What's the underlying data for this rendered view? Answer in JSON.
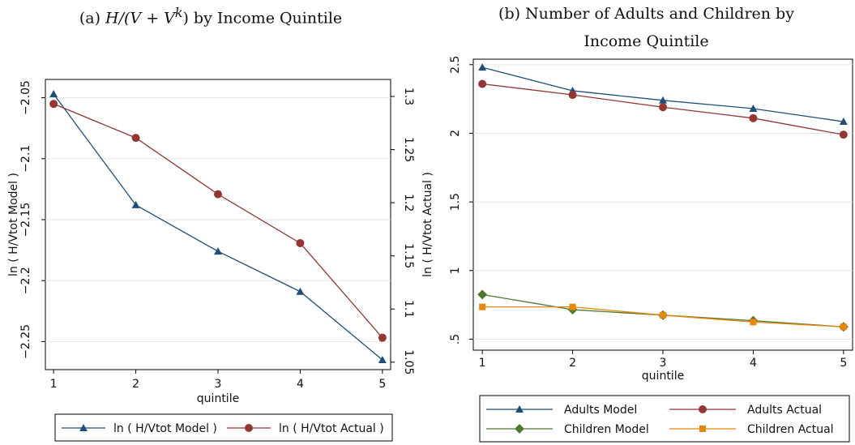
{
  "chart_data": [
    {
      "type": "line",
      "title_prefix": "(a) ",
      "title_math": "H/(V + V",
      "title_sup": "k",
      "title_suffix": ") by Income Quintile",
      "x": [
        1,
        2,
        3,
        4,
        5
      ],
      "xlabel": "quintile",
      "xlim": [
        0.9,
        5.1
      ],
      "xticks": [
        1,
        2,
        3,
        4,
        5
      ],
      "grid": true,
      "legend_position": "bottom",
      "series": [
        {
          "name": "ln ( H/Vtot Model )",
          "axis": "left",
          "color": "#1f4e79",
          "marker": "triangle",
          "values": [
            -2.047,
            -2.138,
            -2.176,
            -2.209,
            -2.265
          ]
        },
        {
          "name": "ln ( H/Vtot Actual )",
          "axis": "right",
          "color": "#943634",
          "marker": "circle",
          "values": [
            1.293,
            1.261,
            1.208,
            1.162,
            1.073
          ]
        }
      ],
      "y_left": {
        "label": "ln ( H/Vtot Model )",
        "ylim": [
          -2.273,
          -2.035
        ],
        "ticks": [
          -2.25,
          -2.2,
          -2.15,
          -2.1,
          -2.05
        ],
        "tick_labels": [
          "−2.25",
          "−2.2",
          "−2.15",
          "−2.1",
          "−2.05"
        ]
      },
      "y_right": {
        "label": "ln ( H/Vtot Actual )",
        "ylim": [
          1.043,
          1.316
        ],
        "ticks": [
          1.05,
          1.1,
          1.15,
          1.2,
          1.25,
          1.3
        ],
        "tick_labels": [
          "1.05",
          "1.1",
          "1.15",
          "1.2",
          "1.25",
          "1.3"
        ]
      }
    },
    {
      "type": "line",
      "title_line1": "(b) Number of Adults and Children by",
      "title_line2": "Income Quintile",
      "x": [
        1,
        2,
        3,
        4,
        5
      ],
      "xlabel": "quintile",
      "xlim": [
        0.9,
        5.1
      ],
      "xticks": [
        1,
        2,
        3,
        4,
        5
      ],
      "grid": true,
      "legend_position": "bottom",
      "ylim": [
        0.42,
        2.54
      ],
      "yticks": [
        0.5,
        1,
        1.5,
        2,
        2.5
      ],
      "ytick_labels": [
        ".5",
        "1",
        "1.5",
        "2",
        "2.5"
      ],
      "series": [
        {
          "name": "Adults Model",
          "color": "#1f4e79",
          "marker": "triangle",
          "values": [
            2.48,
            2.31,
            2.24,
            2.18,
            2.085
          ]
        },
        {
          "name": "Adults Actual",
          "color": "#943634",
          "marker": "circle",
          "values": [
            2.36,
            2.28,
            2.19,
            2.11,
            1.99
          ]
        },
        {
          "name": "Children Model",
          "color": "#4e7a2e",
          "marker": "diamond",
          "values": [
            0.825,
            0.715,
            0.675,
            0.635,
            0.59
          ]
        },
        {
          "name": "Children Actual",
          "color": "#e8860c",
          "marker": "square",
          "values": [
            0.735,
            0.735,
            0.675,
            0.625,
            0.59
          ]
        }
      ]
    }
  ]
}
